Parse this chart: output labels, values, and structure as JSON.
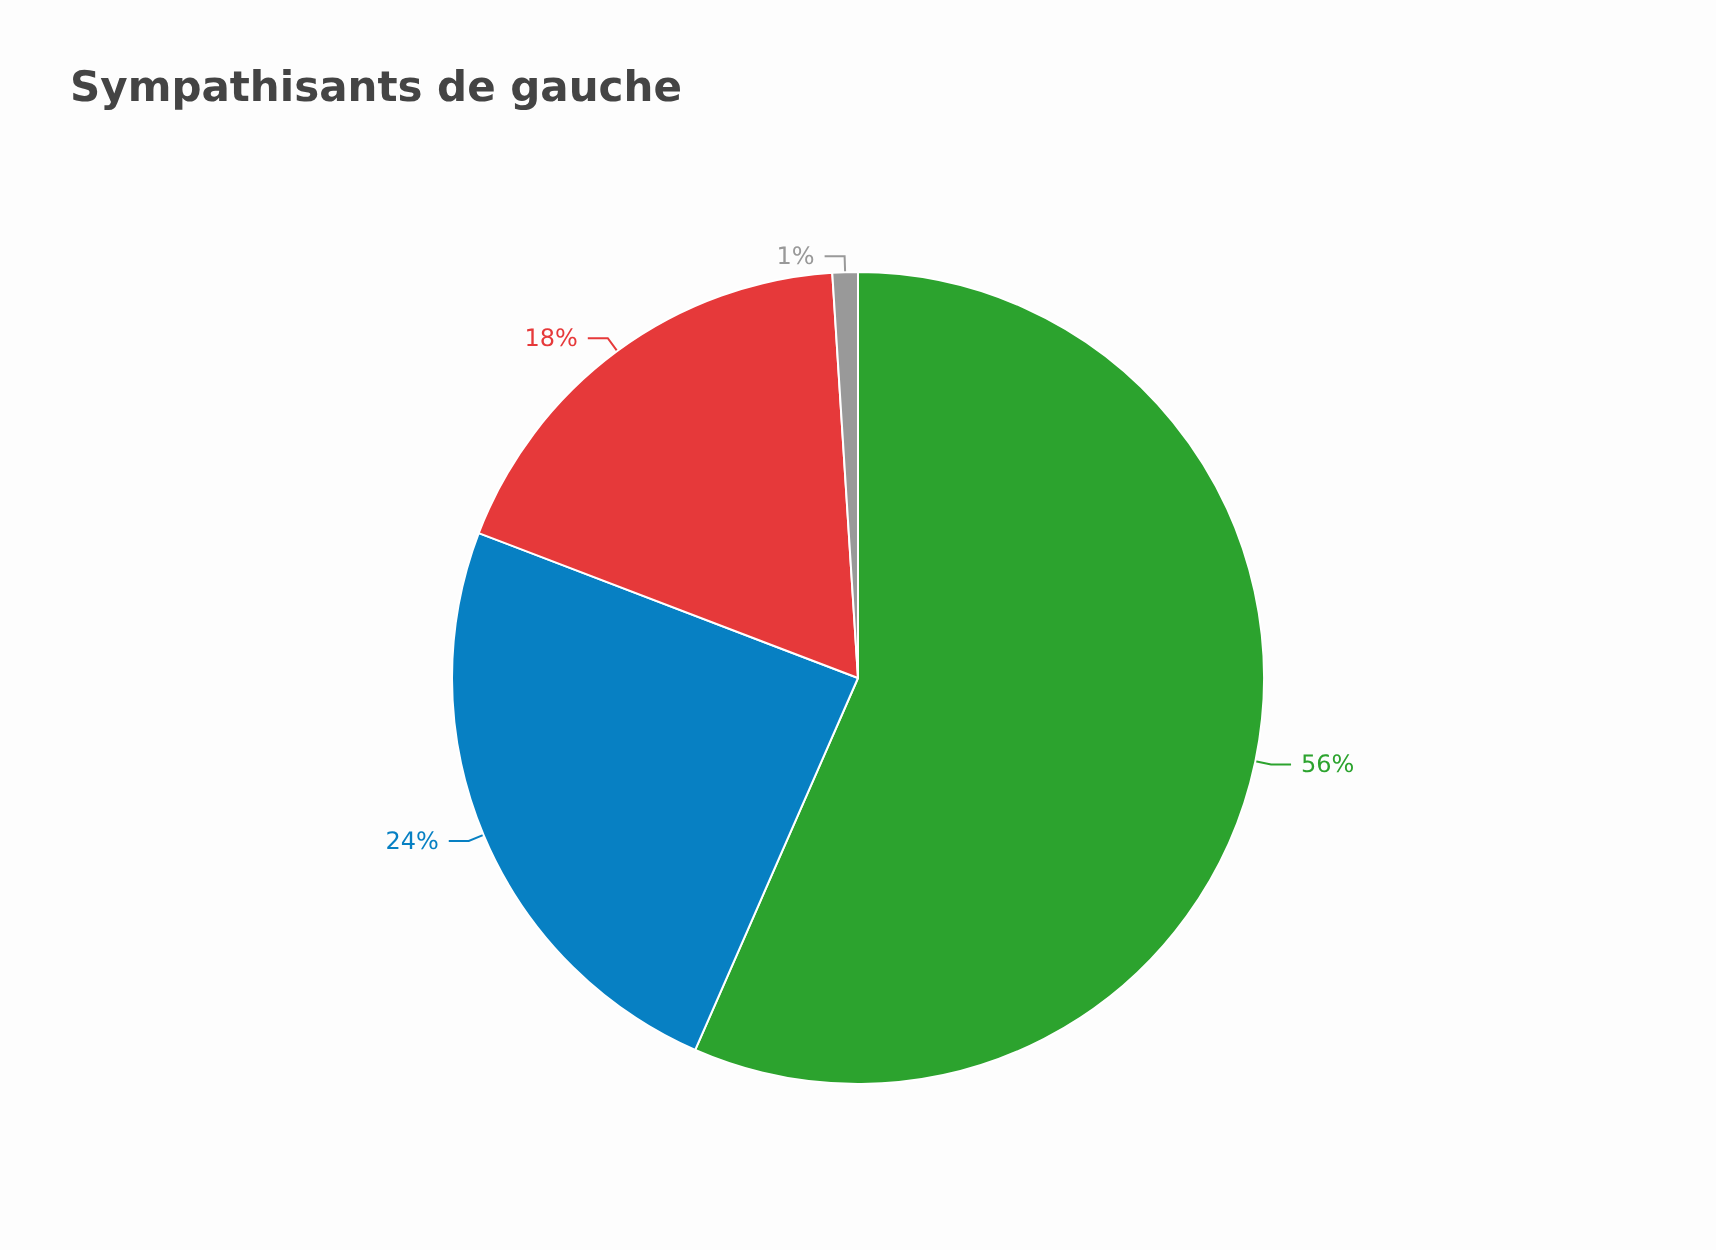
{
  "chart_data": {
    "type": "pie",
    "title": "Sympathisants de gauche",
    "categories": [
      null,
      null,
      null,
      null
    ],
    "values": [
      56,
      24,
      18,
      1
    ],
    "value_labels": [
      "56%",
      "24%",
      "18%",
      "1%"
    ],
    "colors": [
      "#2ca32e",
      "#0780c3",
      "#e6393a",
      "#999999"
    ]
  }
}
